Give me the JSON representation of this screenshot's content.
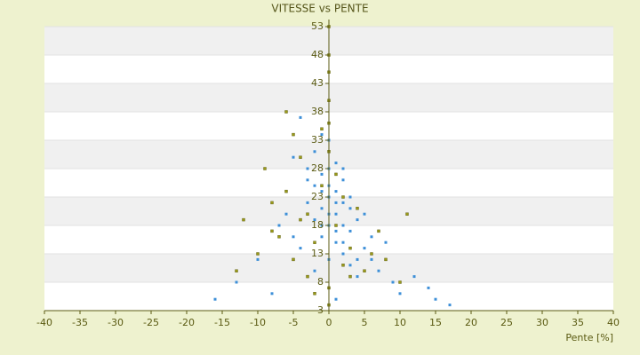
{
  "chart_data": {
    "type": "scatter",
    "title": "VITESSE vs PENTE",
    "x_label": "Pente [%]",
    "xlim": [
      -40,
      40
    ],
    "xticks": [
      -40,
      -35,
      -30,
      -25,
      -20,
      -15,
      -10,
      -5,
      0,
      5,
      10,
      15,
      20,
      25,
      30,
      35,
      40
    ],
    "ylim": [
      3,
      53
    ],
    "yticks": [
      3,
      8,
      13,
      18,
      23,
      28,
      33,
      38,
      43,
      48,
      53
    ],
    "grid": "banded",
    "series": [
      {
        "color": "#3d8fd8",
        "x": [
          -16,
          -13,
          -10,
          -8,
          -7,
          -6,
          -5,
          -4,
          -4,
          -3,
          -3,
          -2,
          -2,
          -2,
          -1,
          -1,
          -1,
          -1,
          0,
          0,
          0,
          0,
          0,
          0,
          1,
          1,
          1,
          1,
          1,
          2,
          2,
          2,
          2,
          3,
          3,
          3,
          4,
          4,
          5,
          5,
          6,
          6,
          7,
          8,
          9,
          10,
          12,
          14,
          15,
          17,
          -3,
          -1,
          0,
          1,
          2,
          0,
          -2,
          3,
          -5,
          4,
          -6,
          2,
          -1,
          1,
          0
        ],
        "values": [
          5,
          8,
          12,
          6,
          18,
          24,
          30,
          37,
          14,
          22,
          28,
          19,
          25,
          31,
          16,
          21,
          27,
          34,
          4,
          12,
          18,
          23,
          28,
          33,
          5,
          15,
          20,
          24,
          29,
          13,
          18,
          22,
          26,
          11,
          17,
          21,
          9,
          19,
          14,
          20,
          12,
          16,
          10,
          15,
          8,
          6,
          9,
          7,
          5,
          4,
          26,
          24,
          20,
          17,
          15,
          25,
          10,
          23,
          16,
          12,
          20,
          28,
          18,
          22,
          4
        ]
      },
      {
        "color": "#9a9a18",
        "x": [
          -13,
          -12,
          -10,
          -9,
          -8,
          -7,
          -6,
          -6,
          -5,
          -4,
          -3,
          -3,
          -2,
          -1,
          -1,
          0,
          0,
          0,
          0,
          0,
          0,
          0,
          1,
          1,
          2,
          3,
          4,
          5,
          6,
          7,
          8,
          10,
          11,
          -5,
          -2,
          2,
          -8,
          -4,
          0,
          3
        ],
        "values": [
          10,
          19,
          13,
          28,
          22,
          16,
          38,
          24,
          12,
          30,
          20,
          9,
          15,
          35,
          25,
          53,
          48,
          45,
          40,
          36,
          31,
          7,
          18,
          27,
          11,
          14,
          21,
          10,
          13,
          17,
          12,
          8,
          20,
          34,
          6,
          23,
          17,
          19,
          4,
          9
        ]
      }
    ]
  }
}
